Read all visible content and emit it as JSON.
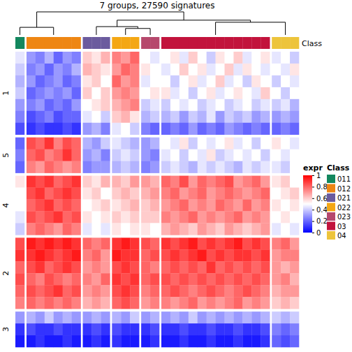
{
  "chart_data": {
    "type": "heatmap",
    "title": "7 groups, 27590 signatures",
    "class_bar_label": "Class",
    "column_class": [
      "011",
      "012",
      "012",
      "012",
      "012",
      "012",
      "012",
      "021",
      "021",
      "021",
      "022",
      "022",
      "022",
      "023",
      "023",
      "03",
      "03",
      "03",
      "03",
      "03",
      "03",
      "03",
      "03",
      "03",
      "03",
      "03",
      "03",
      "04",
      "04",
      "04"
    ],
    "row_slices": [
      {
        "label": "1",
        "values": [
          [
            0.45,
            0.3,
            0.25,
            0.35,
            0.2,
            0.3,
            0.25,
            0.6,
            0.55,
            0.65,
            0.75,
            0.7,
            0.8,
            0.5,
            0.45,
            0.5,
            0.55,
            0.45,
            0.6,
            0.5,
            0.4,
            0.55,
            0.5,
            0.6,
            0.45,
            0.5,
            0.55,
            0.45,
            0.5,
            0.4
          ],
          [
            0.4,
            0.25,
            0.3,
            0.2,
            0.3,
            0.25,
            0.35,
            0.65,
            0.6,
            0.55,
            0.7,
            0.8,
            0.75,
            0.55,
            0.5,
            0.45,
            0.5,
            0.6,
            0.5,
            0.55,
            0.45,
            0.5,
            0.6,
            0.45,
            0.55,
            0.5,
            0.45,
            0.5,
            0.45,
            0.55
          ],
          [
            0.35,
            0.3,
            0.2,
            0.25,
            0.3,
            0.2,
            0.25,
            0.55,
            0.6,
            0.5,
            0.8,
            0.7,
            0.75,
            0.45,
            0.5,
            0.5,
            0.4,
            0.5,
            0.55,
            0.45,
            0.5,
            0.6,
            0.45,
            0.5,
            0.4,
            0.55,
            0.5,
            0.4,
            0.5,
            0.45
          ],
          [
            0.4,
            0.2,
            0.25,
            0.3,
            0.25,
            0.3,
            0.2,
            0.6,
            0.5,
            0.6,
            0.7,
            0.75,
            0.7,
            0.5,
            0.55,
            0.55,
            0.45,
            0.5,
            0.4,
            0.5,
            0.55,
            0.45,
            0.5,
            0.55,
            0.5,
            0.45,
            0.6,
            0.5,
            0.4,
            0.5
          ],
          [
            0.3,
            0.25,
            0.3,
            0.2,
            0.25,
            0.2,
            0.3,
            0.5,
            0.55,
            0.6,
            0.65,
            0.7,
            0.75,
            0.4,
            0.45,
            0.4,
            0.5,
            0.45,
            0.5,
            0.4,
            0.45,
            0.5,
            0.4,
            0.45,
            0.5,
            0.4,
            0.45,
            0.4,
            0.45,
            0.35
          ],
          [
            0.25,
            0.15,
            0.2,
            0.25,
            0.15,
            0.2,
            0.2,
            0.45,
            0.5,
            0.4,
            0.6,
            0.65,
            0.55,
            0.35,
            0.4,
            0.35,
            0.4,
            0.3,
            0.4,
            0.35,
            0.45,
            0.3,
            0.4,
            0.35,
            0.4,
            0.3,
            0.35,
            0.3,
            0.35,
            0.3
          ],
          [
            0.15,
            0.1,
            0.15,
            0.1,
            0.1,
            0.15,
            0.1,
            0.3,
            0.35,
            0.25,
            0.45,
            0.5,
            0.4,
            0.25,
            0.2,
            0.2,
            0.25,
            0.2,
            0.3,
            0.2,
            0.25,
            0.2,
            0.3,
            0.25,
            0.2,
            0.25,
            0.2,
            0.2,
            0.25,
            0.2
          ]
        ]
      },
      {
        "label": "5",
        "values": [
          [
            0.2,
            0.85,
            0.8,
            0.9,
            0.75,
            0.85,
            0.8,
            0.35,
            0.3,
            0.4,
            0.45,
            0.4,
            0.35,
            0.3,
            0.35,
            0.5,
            0.45,
            0.55,
            0.4,
            0.5,
            0.45,
            0.5,
            0.55,
            0.45,
            0.5,
            0.4,
            0.5,
            0.55,
            0.5,
            0.45
          ],
          [
            0.25,
            0.8,
            0.85,
            0.75,
            0.8,
            0.9,
            0.8,
            0.3,
            0.35,
            0.25,
            0.4,
            0.45,
            0.4,
            0.3,
            0.25,
            0.45,
            0.5,
            0.4,
            0.5,
            0.45,
            0.55,
            0.4,
            0.45,
            0.5,
            0.45,
            0.5,
            0.4,
            0.5,
            0.45,
            0.5
          ],
          [
            0.2,
            0.75,
            0.7,
            0.8,
            0.75,
            0.7,
            0.75,
            0.25,
            0.3,
            0.3,
            0.35,
            0.4,
            0.35,
            0.25,
            0.3,
            0.4,
            0.45,
            0.4,
            0.35,
            0.45,
            0.4,
            0.45,
            0.4,
            0.35,
            0.45,
            0.4,
            0.45,
            0.45,
            0.4,
            0.5
          ]
        ]
      },
      {
        "label": "4",
        "values": [
          [
            0.55,
            0.9,
            0.85,
            0.9,
            0.8,
            0.85,
            0.9,
            0.6,
            0.55,
            0.65,
            0.65,
            0.6,
            0.7,
            0.7,
            0.65,
            0.8,
            0.75,
            0.85,
            0.7,
            0.8,
            0.75,
            0.8,
            0.85,
            0.7,
            0.75,
            0.8,
            0.7,
            0.55,
            0.6,
            0.5
          ],
          [
            0.5,
            0.85,
            0.9,
            0.8,
            0.85,
            0.9,
            0.85,
            0.55,
            0.6,
            0.5,
            0.6,
            0.65,
            0.6,
            0.65,
            0.7,
            0.75,
            0.8,
            0.7,
            0.75,
            0.8,
            0.7,
            0.75,
            0.8,
            0.75,
            0.7,
            0.75,
            0.8,
            0.5,
            0.55,
            0.6
          ],
          [
            0.5,
            0.8,
            0.85,
            0.9,
            0.8,
            0.85,
            0.8,
            0.5,
            0.55,
            0.6,
            0.55,
            0.6,
            0.65,
            0.6,
            0.65,
            0.7,
            0.75,
            0.8,
            0.7,
            0.75,
            0.7,
            0.8,
            0.75,
            0.7,
            0.8,
            0.7,
            0.75,
            0.55,
            0.5,
            0.55
          ],
          [
            0.45,
            0.85,
            0.8,
            0.85,
            0.9,
            0.8,
            0.85,
            0.55,
            0.5,
            0.55,
            0.6,
            0.55,
            0.6,
            0.6,
            0.6,
            0.75,
            0.7,
            0.75,
            0.8,
            0.7,
            0.75,
            0.7,
            0.75,
            0.8,
            0.7,
            0.75,
            0.7,
            0.5,
            0.55,
            0.5
          ],
          [
            0.4,
            0.75,
            0.8,
            0.75,
            0.7,
            0.8,
            0.75,
            0.45,
            0.5,
            0.45,
            0.55,
            0.5,
            0.55,
            0.55,
            0.5,
            0.65,
            0.7,
            0.65,
            0.6,
            0.7,
            0.65,
            0.6,
            0.7,
            0.65,
            0.6,
            0.65,
            0.7,
            0.45,
            0.5,
            0.45
          ]
        ]
      },
      {
        "label": "2",
        "values": [
          [
            0.85,
            0.95,
            0.9,
            0.95,
            0.9,
            0.95,
            0.9,
            0.8,
            0.75,
            0.8,
            0.9,
            0.95,
            0.9,
            0.85,
            0.8,
            0.9,
            0.85,
            0.9,
            0.95,
            0.85,
            0.9,
            0.85,
            0.9,
            0.95,
            0.85,
            0.9,
            0.85,
            0.75,
            0.8,
            0.7
          ],
          [
            0.9,
            0.9,
            0.95,
            0.9,
            0.85,
            0.9,
            0.95,
            0.75,
            0.8,
            0.7,
            0.95,
            0.9,
            0.9,
            0.8,
            0.85,
            0.85,
            0.9,
            0.85,
            0.9,
            0.95,
            0.85,
            0.9,
            0.85,
            0.9,
            0.9,
            0.85,
            0.9,
            0.7,
            0.75,
            0.75
          ],
          [
            0.8,
            0.85,
            0.9,
            0.8,
            0.85,
            0.9,
            0.85,
            0.7,
            0.75,
            0.7,
            0.85,
            0.9,
            0.85,
            0.8,
            0.75,
            0.8,
            0.85,
            0.8,
            0.85,
            0.8,
            0.9,
            0.8,
            0.85,
            0.8,
            0.85,
            0.8,
            0.85,
            0.7,
            0.65,
            0.7
          ],
          [
            0.85,
            0.8,
            0.75,
            0.85,
            0.8,
            0.75,
            0.8,
            0.75,
            0.7,
            0.8,
            0.9,
            0.85,
            0.9,
            0.8,
            0.85,
            0.85,
            0.8,
            0.85,
            0.8,
            0.85,
            0.8,
            0.85,
            0.8,
            0.85,
            0.8,
            0.85,
            0.8,
            0.7,
            0.75,
            0.65
          ],
          [
            0.8,
            0.85,
            0.8,
            0.85,
            0.9,
            0.8,
            0.85,
            0.7,
            0.75,
            0.7,
            0.85,
            0.9,
            0.85,
            0.75,
            0.8,
            0.8,
            0.85,
            0.8,
            0.75,
            0.8,
            0.85,
            0.8,
            0.75,
            0.8,
            0.85,
            0.8,
            0.75,
            0.65,
            0.7,
            0.7
          ],
          [
            0.75,
            0.8,
            0.75,
            0.8,
            0.75,
            0.8,
            0.75,
            0.65,
            0.7,
            0.65,
            0.8,
            0.85,
            0.8,
            0.7,
            0.75,
            0.75,
            0.7,
            0.75,
            0.8,
            0.7,
            0.75,
            0.7,
            0.75,
            0.8,
            0.7,
            0.75,
            0.7,
            0.6,
            0.65,
            0.6
          ]
        ]
      },
      {
        "label": "3",
        "values": [
          [
            0.3,
            0.35,
            0.3,
            0.4,
            0.3,
            0.35,
            0.3,
            0.3,
            0.35,
            0.3,
            0.35,
            0.3,
            0.4,
            0.3,
            0.35,
            0.3,
            0.35,
            0.3,
            0.4,
            0.3,
            0.35,
            0.3,
            0.35,
            0.3,
            0.35,
            0.3,
            0.35,
            0.4,
            0.35,
            0.4
          ],
          [
            0.1,
            0.15,
            0.1,
            0.1,
            0.15,
            0.1,
            0.1,
            0.1,
            0.15,
            0.1,
            0.15,
            0.1,
            0.1,
            0.1,
            0.15,
            0.1,
            0.1,
            0.15,
            0.1,
            0.1,
            0.15,
            0.1,
            0.1,
            0.15,
            0.1,
            0.1,
            0.15,
            0.25,
            0.2,
            0.25
          ],
          [
            0.05,
            0.05,
            0.1,
            0.05,
            0.05,
            0.1,
            0.05,
            0.05,
            0.1,
            0.05,
            0.1,
            0.05,
            0.05,
            0.05,
            0.1,
            0.05,
            0.05,
            0.1,
            0.05,
            0.05,
            0.1,
            0.05,
            0.05,
            0.1,
            0.05,
            0.05,
            0.1,
            0.2,
            0.15,
            0.2
          ]
        ]
      }
    ],
    "colorbar": {
      "title": "expr",
      "range": [
        0,
        1
      ],
      "ticks": [
        0,
        0.2,
        0.4,
        0.6,
        0.8,
        1
      ]
    },
    "class_legend": {
      "title": "Class",
      "names": [
        "011",
        "012",
        "021",
        "022",
        "023",
        "03",
        "04"
      ],
      "colors": [
        "#13875E",
        "#EE8613",
        "#6B5B9E",
        "#F4A714",
        "#B6486C",
        "#C2133C",
        "#EDC43B"
      ]
    },
    "dendrogram": {
      "height": 1,
      "children": [
        {
          "height": 0.33,
          "children": [
            {
              "leaf": "011"
            },
            {
              "leaf": "012"
            }
          ]
        },
        {
          "height": 0.64,
          "children": [
            {
              "height": 0.36,
              "children": [
                {
                  "leaf": "021"
                },
                {
                  "height": 0.28,
                  "children": [
                    {
                      "leaf": "022"
                    },
                    {
                      "leaf": "023"
                    }
                  ]
                }
              ]
            },
            {
              "height": 0.55,
              "children": [
                {
                  "leaf": "03"
                },
                {
                  "leaf": "04"
                }
              ]
            }
          ]
        }
      ]
    }
  }
}
